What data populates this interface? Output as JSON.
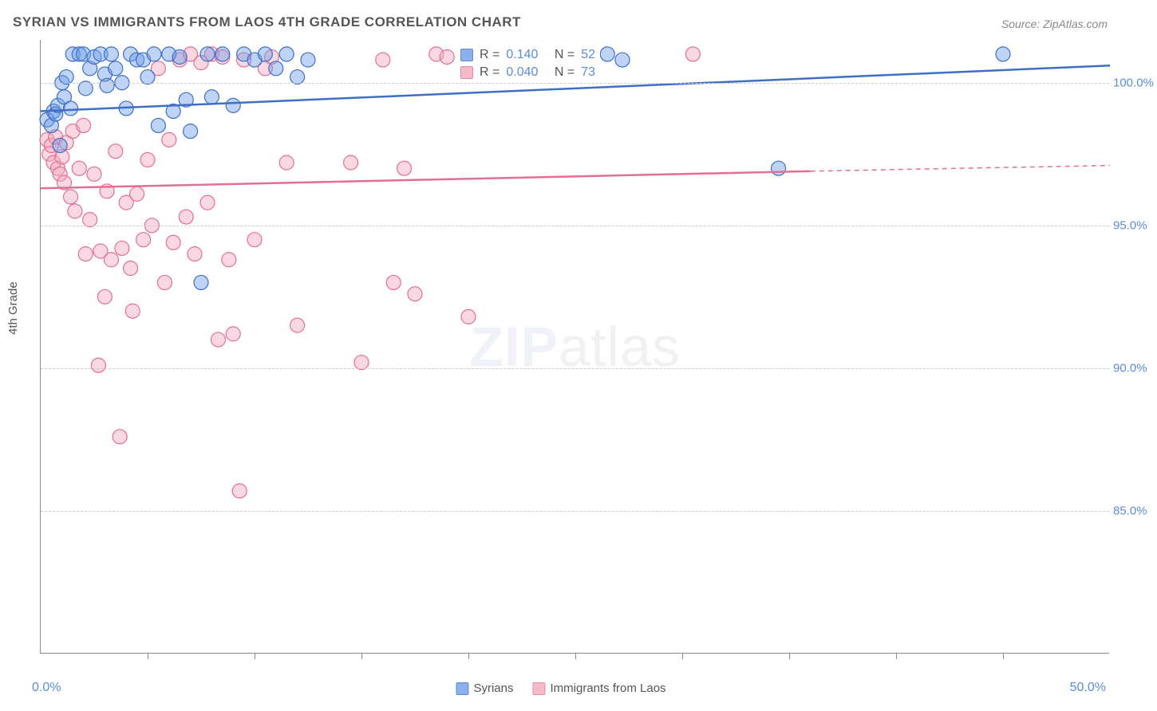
{
  "title": "SYRIAN VS IMMIGRANTS FROM LAOS 4TH GRADE CORRELATION CHART",
  "source": "Source: ZipAtlas.com",
  "ylabel": "4th Grade",
  "watermark_a": "ZIP",
  "watermark_b": "atlas",
  "chart": {
    "type": "scatter",
    "xlim": [
      0,
      50
    ],
    "ylim": [
      80,
      101.5
    ],
    "x_axis_label_left": "0.0%",
    "x_axis_label_right": "50.0%",
    "y_ticks": [
      85,
      90,
      95,
      100
    ],
    "y_tick_labels": [
      "85.0%",
      "90.0%",
      "95.0%",
      "100.0%"
    ],
    "x_ticks": [
      5,
      10,
      15,
      20,
      25,
      30,
      35,
      40,
      45
    ],
    "background_color": "#ffffff",
    "grid_color": "#cccccc",
    "marker_radius": 9,
    "marker_opacity": 0.45,
    "line_width": 2.5,
    "series": [
      {
        "name": "Syrians",
        "color_fill": "#6f9de8",
        "color_stroke": "#3f6fc4",
        "R": "0.140",
        "N": "52",
        "trend": {
          "x1": 0,
          "y1": 99.0,
          "x2": 50,
          "y2": 100.6
        },
        "points": [
          [
            0.3,
            98.7
          ],
          [
            0.5,
            98.5
          ],
          [
            0.6,
            99.0
          ],
          [
            0.7,
            98.9
          ],
          [
            0.8,
            99.2
          ],
          [
            0.9,
            97.8
          ],
          [
            1.0,
            100.0
          ],
          [
            1.1,
            99.5
          ],
          [
            1.2,
            100.2
          ],
          [
            1.4,
            99.1
          ],
          [
            1.5,
            101.0
          ],
          [
            1.8,
            101.0
          ],
          [
            2.0,
            101.0
          ],
          [
            2.1,
            99.8
          ],
          [
            2.3,
            100.5
          ],
          [
            2.5,
            100.9
          ],
          [
            2.8,
            101.0
          ],
          [
            3.0,
            100.3
          ],
          [
            3.1,
            99.9
          ],
          [
            3.3,
            101.0
          ],
          [
            3.5,
            100.5
          ],
          [
            3.8,
            100.0
          ],
          [
            4.0,
            99.1
          ],
          [
            4.2,
            101.0
          ],
          [
            4.5,
            100.8
          ],
          [
            4.8,
            100.8
          ],
          [
            5.0,
            100.2
          ],
          [
            5.3,
            101.0
          ],
          [
            5.5,
            98.5
          ],
          [
            6.0,
            101.0
          ],
          [
            6.2,
            99.0
          ],
          [
            6.5,
            100.9
          ],
          [
            6.8,
            99.4
          ],
          [
            7.0,
            98.3
          ],
          [
            7.5,
            93.0
          ],
          [
            7.8,
            101.0
          ],
          [
            8.0,
            99.5
          ],
          [
            8.5,
            101.0
          ],
          [
            9.0,
            99.2
          ],
          [
            9.5,
            101.0
          ],
          [
            10.0,
            100.8
          ],
          [
            10.5,
            101.0
          ],
          [
            11.0,
            100.5
          ],
          [
            11.5,
            101.0
          ],
          [
            12.0,
            100.2
          ],
          [
            12.5,
            100.8
          ],
          [
            26.5,
            101.0
          ],
          [
            27.2,
            100.8
          ],
          [
            34.5,
            97.0
          ],
          [
            45.0,
            101.0
          ]
        ]
      },
      {
        "name": "Immigrants from Laos",
        "color_fill": "#f4a8bd",
        "color_stroke": "#e36f94",
        "R": "0.040",
        "N": "73",
        "trend": {
          "x1": 0,
          "y1": 96.3,
          "x2": 36,
          "y2": 96.9
        },
        "trend_dashed": {
          "x1": 36,
          "y1": 96.9,
          "x2": 50,
          "y2": 97.1
        },
        "points": [
          [
            0.3,
            98.0
          ],
          [
            0.4,
            97.5
          ],
          [
            0.5,
            97.8
          ],
          [
            0.6,
            97.2
          ],
          [
            0.7,
            98.1
          ],
          [
            0.8,
            97.0
          ],
          [
            0.9,
            96.8
          ],
          [
            1.0,
            97.4
          ],
          [
            1.1,
            96.5
          ],
          [
            1.2,
            97.9
          ],
          [
            1.4,
            96.0
          ],
          [
            1.5,
            98.3
          ],
          [
            1.6,
            95.5
          ],
          [
            1.8,
            97.0
          ],
          [
            2.0,
            98.5
          ],
          [
            2.1,
            94.0
          ],
          [
            2.3,
            95.2
          ],
          [
            2.5,
            96.8
          ],
          [
            2.7,
            90.1
          ],
          [
            2.8,
            94.1
          ],
          [
            3.0,
            92.5
          ],
          [
            3.1,
            96.2
          ],
          [
            3.3,
            93.8
          ],
          [
            3.5,
            97.6
          ],
          [
            3.7,
            87.6
          ],
          [
            3.8,
            94.2
          ],
          [
            4.0,
            95.8
          ],
          [
            4.2,
            93.5
          ],
          [
            4.3,
            92.0
          ],
          [
            4.5,
            96.1
          ],
          [
            4.8,
            94.5
          ],
          [
            5.0,
            97.3
          ],
          [
            5.2,
            95.0
          ],
          [
            5.5,
            100.5
          ],
          [
            5.8,
            93.0
          ],
          [
            6.0,
            98.0
          ],
          [
            6.2,
            94.4
          ],
          [
            6.5,
            100.8
          ],
          [
            6.8,
            95.3
          ],
          [
            7.0,
            101.0
          ],
          [
            7.2,
            94.0
          ],
          [
            7.5,
            100.7
          ],
          [
            7.8,
            95.8
          ],
          [
            8.0,
            101.0
          ],
          [
            8.3,
            91.0
          ],
          [
            8.5,
            100.9
          ],
          [
            8.8,
            93.8
          ],
          [
            9.0,
            91.2
          ],
          [
            9.3,
            85.7
          ],
          [
            9.5,
            100.8
          ],
          [
            10.0,
            94.5
          ],
          [
            10.5,
            100.5
          ],
          [
            10.8,
            100.9
          ],
          [
            11.5,
            97.2
          ],
          [
            12.0,
            91.5
          ],
          [
            14.5,
            97.2
          ],
          [
            15.0,
            90.2
          ],
          [
            16.0,
            100.8
          ],
          [
            16.5,
            93.0
          ],
          [
            17.0,
            97.0
          ],
          [
            17.5,
            92.6
          ],
          [
            18.5,
            101.0
          ],
          [
            19.0,
            100.9
          ],
          [
            20.0,
            91.8
          ],
          [
            30.5,
            101.0
          ]
        ]
      }
    ]
  },
  "legend": {
    "series1": "Syrians",
    "series2": "Immigrants from Laos"
  },
  "stats_labels": {
    "R": "R =",
    "N": "N ="
  }
}
